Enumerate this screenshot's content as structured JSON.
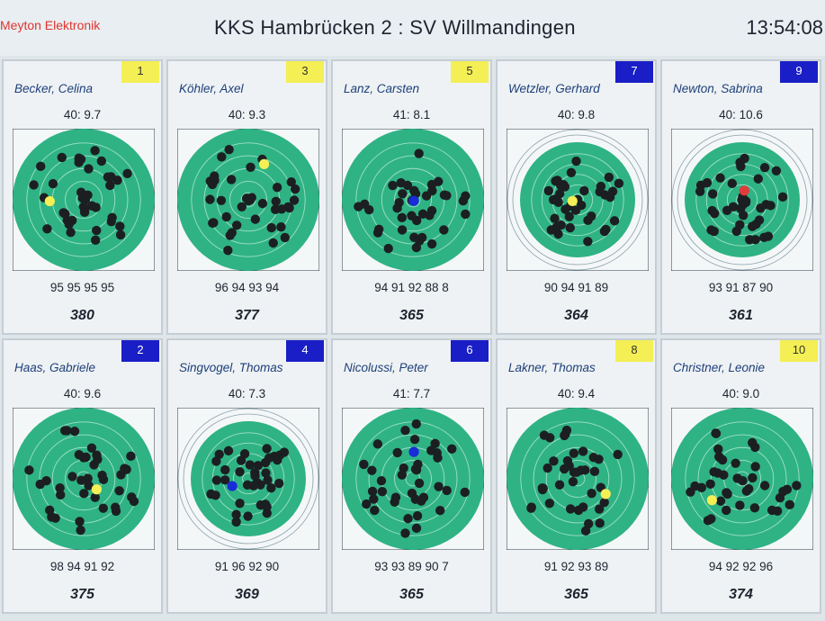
{
  "header": {
    "brand": "Meyton Elektronik",
    "match": "KKS Hambrücken 2 : SV Willmandingen",
    "time": "13:54:08"
  },
  "colors": {
    "target_green": "#2fb384",
    "badge_yellow": "#f4ef54",
    "badge_blue": "#1a1ec6",
    "name_blue": "#1e3f7a",
    "brand_red": "#e0342f"
  },
  "shooters": [
    {
      "position": "1",
      "badge": "yellow",
      "name": "Becker, Celina",
      "last_shot": "40:   9.7",
      "series": "95 95 95 95",
      "total": "380"
    },
    {
      "position": "3",
      "badge": "yellow",
      "name": "Köhler, Axel",
      "last_shot": "40:   9.3",
      "series": "96 94 93 94",
      "total": "377"
    },
    {
      "position": "5",
      "badge": "yellow",
      "name": "Lanz, Carsten",
      "last_shot": "41:   8.1",
      "series": "94 91 92 88 8",
      "total": "365"
    },
    {
      "position": "7",
      "badge": "blue",
      "name": "Wetzler, Gerhard",
      "last_shot": "40:   9.8",
      "series": "90 94 91 89",
      "total": "364"
    },
    {
      "position": "9",
      "badge": "blue",
      "name": "Newton, Sabrina",
      "last_shot": "40:  10.6",
      "series": "93 91 87 90",
      "total": "361"
    },
    {
      "position": "2",
      "badge": "blue",
      "name": "Haas, Gabriele",
      "last_shot": "40:   9.6",
      "series": "98 94 91 92",
      "total": "375"
    },
    {
      "position": "4",
      "badge": "blue",
      "name": "Singvogel, Thomas",
      "last_shot": "40:   7.3",
      "series": "91 96 92 90",
      "total": "369"
    },
    {
      "position": "6",
      "badge": "blue",
      "name": "Nicolussi, Peter",
      "last_shot": "41:   7.7",
      "series": "93 93 89 90 7",
      "total": "365"
    },
    {
      "position": "8",
      "badge": "yellow",
      "name": "Lakner, Thomas",
      "last_shot": "40:   9.4",
      "series": "91 92 93 89",
      "total": "365"
    },
    {
      "position": "10",
      "badge": "yellow",
      "name": "Christner, Leonie",
      "last_shot": "40:   9.0",
      "series": "94 92 92 96",
      "total": "374"
    }
  ]
}
